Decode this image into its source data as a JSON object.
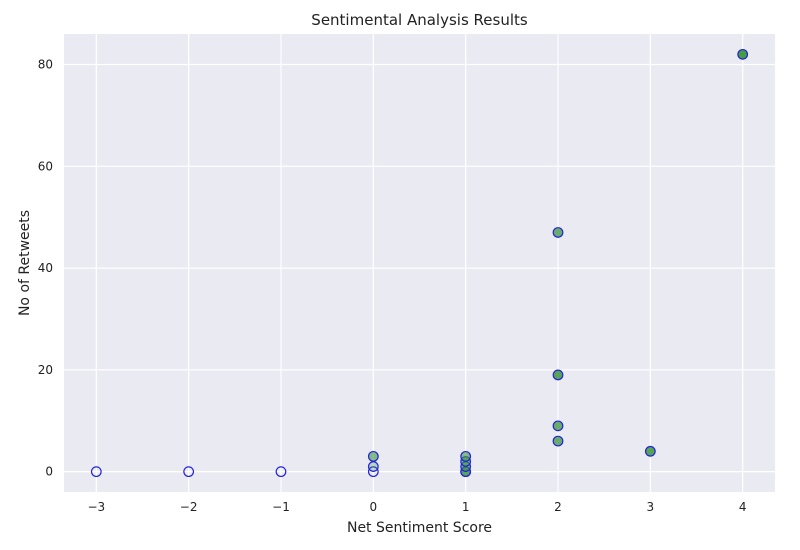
{
  "chart_data": {
    "type": "scatter",
    "title": "Sentimental Analysis Results",
    "xlabel": "Net Sentiment Score",
    "ylabel": "No of Retweets",
    "xlim": [
      -3.35,
      4.35
    ],
    "ylim": [
      -4,
      86
    ],
    "x_ticks": [
      -3,
      -2,
      -1,
      0,
      1,
      2,
      3,
      4
    ],
    "x_tick_labels": [
      "−3",
      "−2",
      "−1",
      "0",
      "1",
      "2",
      "3",
      "4"
    ],
    "y_ticks": [
      0,
      20,
      40,
      60,
      80
    ],
    "y_tick_labels": [
      "0",
      "20",
      "40",
      "60",
      "80"
    ],
    "grid": true,
    "background": "#EAEAF2",
    "grid_color": "#FFFFFF",
    "marker_edge_color": "#2222DD",
    "points": [
      {
        "x": -3,
        "y": 0,
        "alpha": 0.0
      },
      {
        "x": -2,
        "y": 0,
        "alpha": 0.0
      },
      {
        "x": -1,
        "y": 0,
        "alpha": 0.0
      },
      {
        "x": 0,
        "y": 0,
        "alpha": 0.0
      },
      {
        "x": 0,
        "y": 1,
        "alpha": 0.3
      },
      {
        "x": 0,
        "y": 3,
        "alpha": 0.6
      },
      {
        "x": 1,
        "y": 0,
        "alpha": 0.6
      },
      {
        "x": 1,
        "y": 0,
        "alpha": 0.6
      },
      {
        "x": 1,
        "y": 1,
        "alpha": 0.6
      },
      {
        "x": 1,
        "y": 2,
        "alpha": 0.6
      },
      {
        "x": 1,
        "y": 3,
        "alpha": 0.6
      },
      {
        "x": 2,
        "y": 6,
        "alpha": 0.75
      },
      {
        "x": 2,
        "y": 9,
        "alpha": 0.75
      },
      {
        "x": 2,
        "y": 19,
        "alpha": 0.85
      },
      {
        "x": 2,
        "y": 47,
        "alpha": 0.75
      },
      {
        "x": 3,
        "y": 4,
        "alpha": 0.85
      },
      {
        "x": 4,
        "y": 82,
        "alpha": 0.95
      }
    ]
  }
}
